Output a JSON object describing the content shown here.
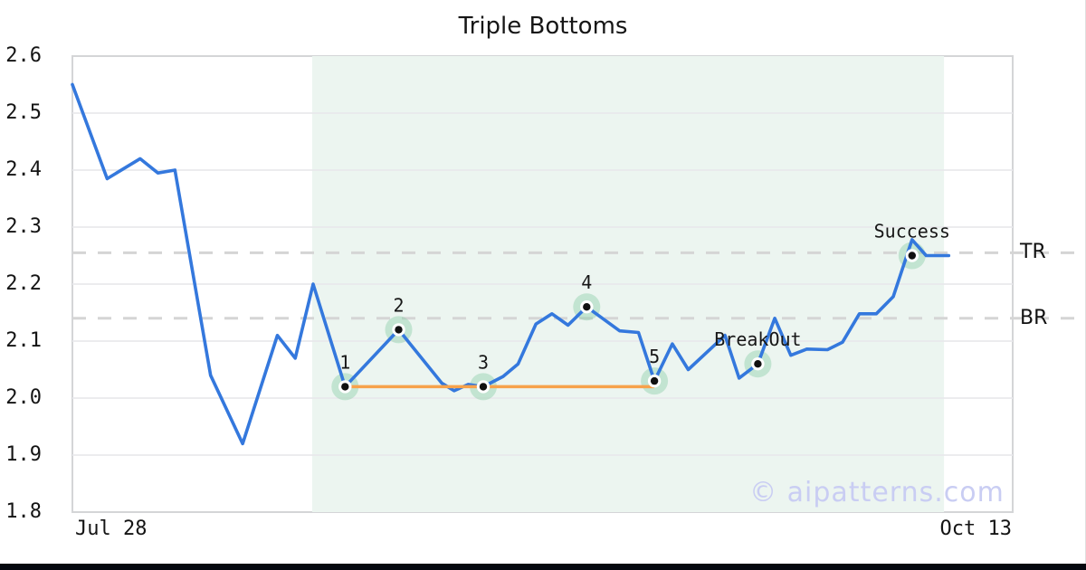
{
  "title": "Triple Bottoms",
  "watermark": "© aipatterns.com",
  "axes": {
    "x_tick_left": "Jul 28",
    "x_tick_right": "Oct 13",
    "y_tick_labels": [
      "2.6",
      "2.5",
      "2.4",
      "2.3",
      "2.2",
      "2.1",
      "2.0",
      "1.9",
      "1.8"
    ]
  },
  "levels": [
    {
      "label": "TR",
      "value": 2.255
    },
    {
      "label": "BR",
      "value": 2.14
    }
  ],
  "colors": {
    "price_line": "#3478dd",
    "support_line": "#f7a24b",
    "shade": "#ecf5f0",
    "grid": "#e9e9ec",
    "level_dash": "#d5d5d5",
    "marker_halo": "rgba(133,202,162,0.40)",
    "marker_dot": "#111111",
    "text": "#161616",
    "watermark": "#c9cdf3"
  },
  "chart_data": {
    "type": "line",
    "title": "Triple Bottoms",
    "xlabel": "",
    "ylabel": "",
    "x_range_labels": [
      "Jul 28",
      "Oct 13"
    ],
    "ylim": [
      1.8,
      2.6
    ],
    "y_tick_step": 0.1,
    "y_grid_values": [
      2.5,
      2.4,
      2.3,
      2.2,
      2.1,
      2.0,
      1.9
    ],
    "grid": true,
    "x_unit": "fraction_of_date_range",
    "series": [
      {
        "name": "price",
        "points": [
          [
            0.0,
            2.55
          ],
          [
            0.037,
            2.385
          ],
          [
            0.072,
            2.42
          ],
          [
            0.091,
            2.395
          ],
          [
            0.109,
            2.4
          ],
          [
            0.147,
            2.04
          ],
          [
            0.181,
            1.92
          ],
          [
            0.218,
            2.11
          ],
          [
            0.237,
            2.07
          ],
          [
            0.256,
            2.2
          ],
          [
            0.29,
            2.02
          ],
          [
            0.347,
            2.12
          ],
          [
            0.393,
            2.026
          ],
          [
            0.406,
            2.013
          ],
          [
            0.421,
            2.024
          ],
          [
            0.437,
            2.02
          ],
          [
            0.458,
            2.038
          ],
          [
            0.474,
            2.06
          ],
          [
            0.493,
            2.13
          ],
          [
            0.51,
            2.148
          ],
          [
            0.527,
            2.128
          ],
          [
            0.547,
            2.16
          ],
          [
            0.582,
            2.118
          ],
          [
            0.602,
            2.115
          ],
          [
            0.619,
            2.03
          ],
          [
            0.638,
            2.095
          ],
          [
            0.655,
            2.05
          ],
          [
            0.694,
            2.11
          ],
          [
            0.709,
            2.035
          ],
          [
            0.729,
            2.06
          ],
          [
            0.747,
            2.14
          ],
          [
            0.764,
            2.075
          ],
          [
            0.781,
            2.086
          ],
          [
            0.803,
            2.085
          ],
          [
            0.819,
            2.098
          ],
          [
            0.837,
            2.148
          ],
          [
            0.855,
            2.148
          ],
          [
            0.873,
            2.178
          ],
          [
            0.893,
            2.278
          ],
          [
            0.908,
            2.25
          ],
          [
            0.932,
            2.25
          ]
        ]
      }
    ],
    "levels": [
      {
        "label": "TR",
        "value": 2.255
      },
      {
        "label": "BR",
        "value": 2.14
      }
    ],
    "support_line": {
      "y": 2.02,
      "x_from": 0.29,
      "x_to": 0.619
    },
    "shaded_region": {
      "x_from": 0.255,
      "x_to": 0.927
    },
    "markers": [
      {
        "label": "1",
        "x": 0.29,
        "y": 2.02
      },
      {
        "label": "2",
        "x": 0.347,
        "y": 2.12
      },
      {
        "label": "3",
        "x": 0.437,
        "y": 2.02
      },
      {
        "label": "4",
        "x": 0.547,
        "y": 2.16
      },
      {
        "label": "5",
        "x": 0.619,
        "y": 2.03
      },
      {
        "label": "BreakOut",
        "x": 0.729,
        "y": 2.06
      },
      {
        "label": "Success",
        "x": 0.893,
        "y": 2.25
      }
    ]
  }
}
